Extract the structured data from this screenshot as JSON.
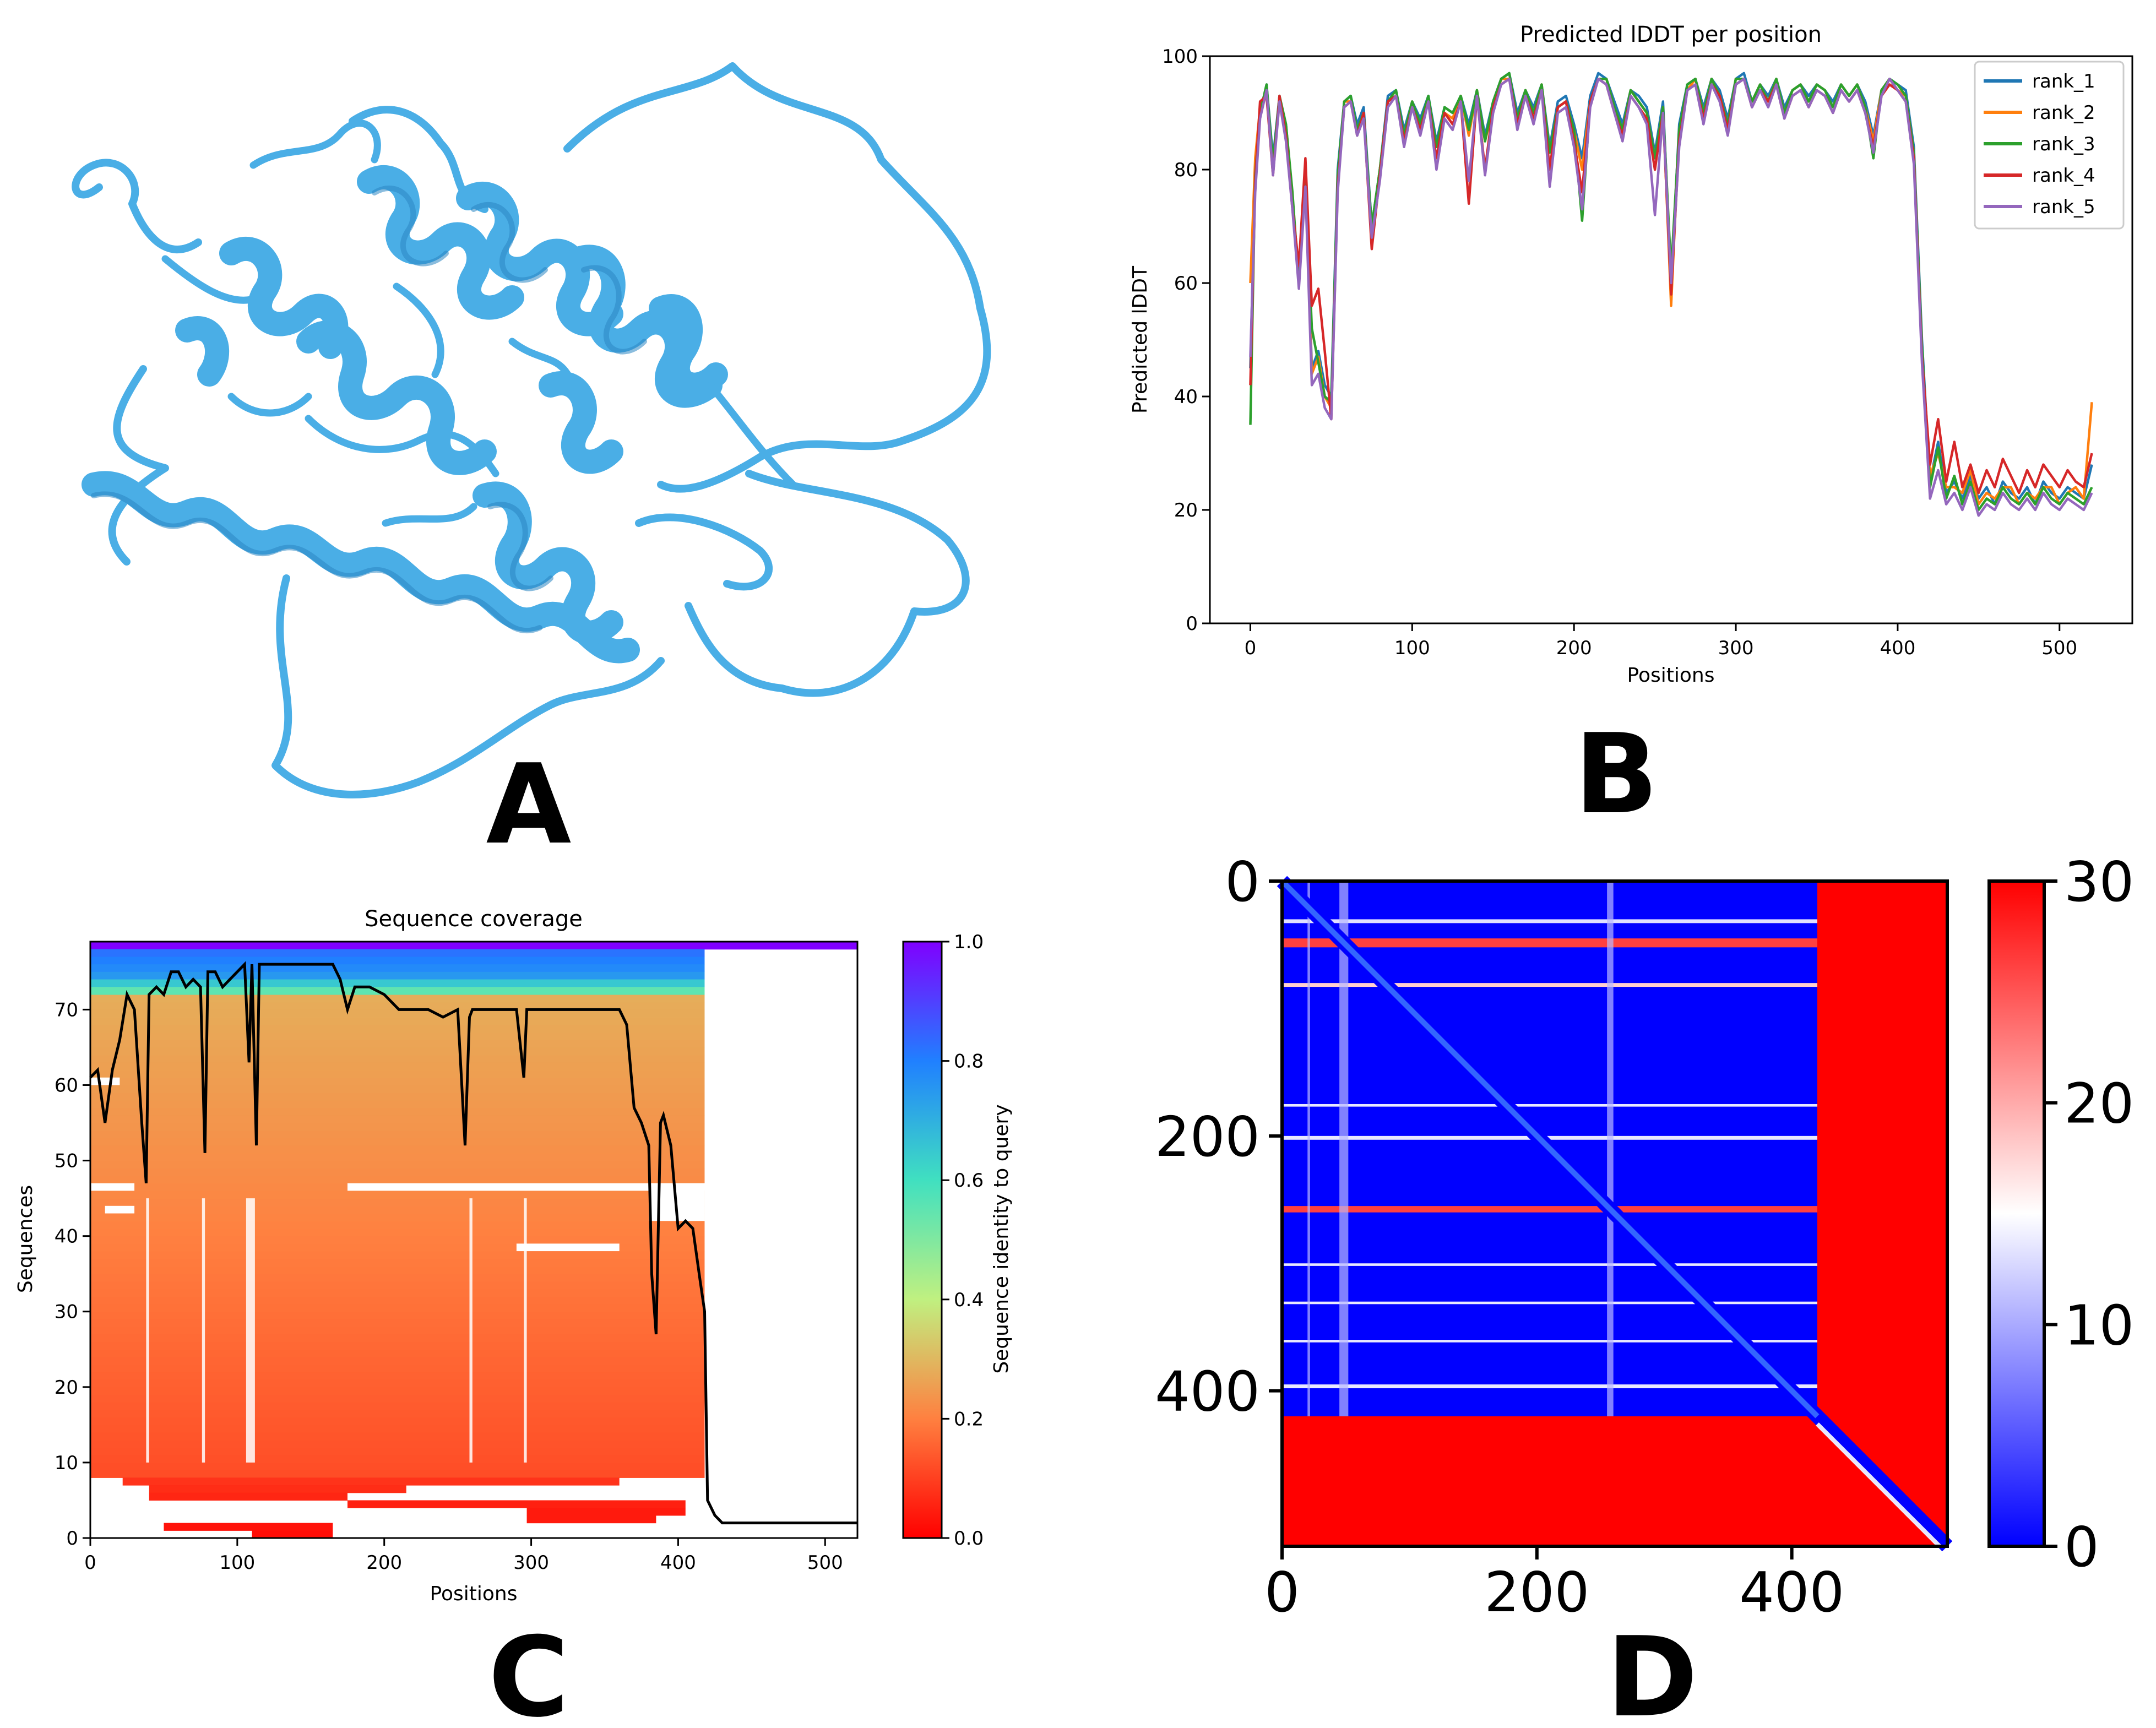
{
  "panel_labels": [
    "A",
    "B",
    "C",
    "D"
  ],
  "structure": {
    "description_color": "#4aaee6",
    "shade_color": "#2b86c2"
  },
  "chart_data": [
    {
      "panel": "B",
      "type": "line",
      "title": "Predicted lDDT per position",
      "xlabel": "Positions",
      "ylabel": "Predicted lDDT",
      "xlim": [
        -25,
        545
      ],
      "ylim": [
        0,
        100
      ],
      "xticks": [
        0,
        100,
        200,
        300,
        400,
        500
      ],
      "yticks": [
        0,
        20,
        40,
        60,
        80,
        100
      ],
      "legend_position": "top-right",
      "grid": false,
      "x": [
        0,
        3,
        6,
        10,
        14,
        18,
        22,
        26,
        30,
        34,
        38,
        42,
        46,
        50,
        54,
        58,
        62,
        66,
        70,
        75,
        80,
        85,
        90,
        95,
        100,
        105,
        110,
        115,
        120,
        125,
        130,
        135,
        140,
        145,
        150,
        155,
        160,
        165,
        170,
        175,
        180,
        185,
        190,
        195,
        200,
        205,
        210,
        215,
        220,
        225,
        230,
        235,
        240,
        245,
        250,
        255,
        260,
        265,
        270,
        275,
        280,
        285,
        290,
        295,
        300,
        305,
        310,
        315,
        320,
        325,
        330,
        335,
        340,
        345,
        350,
        355,
        360,
        365,
        370,
        375,
        380,
        385,
        390,
        395,
        400,
        405,
        410,
        415,
        420,
        425,
        430,
        435,
        440,
        445,
        450,
        455,
        460,
        465,
        470,
        475,
        480,
        485,
        490,
        495,
        500,
        505,
        510,
        515,
        520
      ],
      "series": [
        {
          "name": "rank_1",
          "color": "#1f77b4",
          "values": [
            45,
            80,
            90,
            95,
            82,
            93,
            88,
            75,
            60,
            80,
            45,
            48,
            42,
            40,
            80,
            92,
            93,
            88,
            91,
            70,
            80,
            93,
            94,
            87,
            92,
            89,
            93,
            85,
            91,
            90,
            93,
            88,
            94,
            86,
            92,
            96,
            97,
            90,
            94,
            91,
            95,
            84,
            92,
            93,
            88,
            82,
            93,
            97,
            96,
            92,
            88,
            94,
            93,
            91,
            83,
            92,
            60,
            88,
            95,
            96,
            91,
            96,
            94,
            89,
            96,
            97,
            92,
            95,
            93,
            96,
            91,
            94,
            95,
            93,
            95,
            94,
            92,
            95,
            93,
            95,
            92,
            86,
            94,
            96,
            95,
            94,
            84,
            50,
            25,
            32,
            23,
            25,
            22,
            26,
            22,
            24,
            21,
            25,
            23,
            22,
            24,
            21,
            25,
            23,
            22,
            24,
            23,
            22,
            28
          ]
        },
        {
          "name": "rank_2",
          "color": "#ff7f0e",
          "values": [
            60,
            82,
            91,
            94,
            80,
            92,
            87,
            74,
            62,
            78,
            44,
            47,
            40,
            38,
            78,
            92,
            92,
            87,
            90,
            69,
            80,
            92,
            93,
            86,
            92,
            88,
            92,
            84,
            90,
            89,
            93,
            86,
            94,
            85,
            91,
            96,
            96,
            89,
            94,
            90,
            95,
            83,
            91,
            92,
            87,
            80,
            92,
            96,
            96,
            91,
            87,
            94,
            92,
            90,
            82,
            91,
            56,
            87,
            94,
            96,
            90,
            96,
            93,
            88,
            96,
            96,
            92,
            95,
            92,
            96,
            90,
            94,
            95,
            92,
            95,
            94,
            91,
            95,
            93,
            95,
            91,
            85,
            94,
            96,
            94,
            93,
            83,
            48,
            26,
            30,
            24,
            24,
            23,
            27,
            21,
            23,
            22,
            24,
            24,
            21,
            23,
            22,
            24,
            24,
            21,
            23,
            24,
            22,
            39
          ]
        },
        {
          "name": "rank_3",
          "color": "#2ca02c",
          "values": [
            35,
            79,
            90,
            95,
            81,
            93,
            88,
            76,
            60,
            79,
            52,
            46,
            40,
            39,
            79,
            92,
            93,
            87,
            90,
            70,
            80,
            92,
            94,
            86,
            92,
            88,
            93,
            84,
            91,
            90,
            93,
            87,
            94,
            85,
            92,
            96,
            97,
            89,
            94,
            90,
            95,
            83,
            91,
            92,
            87,
            71,
            92,
            96,
            96,
            91,
            87,
            94,
            92,
            90,
            82,
            91,
            62,
            87,
            95,
            96,
            90,
            96,
            93,
            88,
            96,
            96,
            92,
            95,
            92,
            96,
            90,
            94,
            95,
            92,
            95,
            94,
            91,
            95,
            93,
            95,
            91,
            82,
            94,
            96,
            95,
            93,
            83,
            49,
            24,
            31,
            22,
            26,
            21,
            25,
            20,
            22,
            21,
            24,
            22,
            21,
            23,
            21,
            24,
            22,
            21,
            23,
            22,
            21,
            24
          ]
        },
        {
          "name": "rank_4",
          "color": "#d62728",
          "values": [
            42,
            78,
            92,
            93,
            79,
            93,
            86,
            73,
            63,
            82,
            56,
            59,
            48,
            36,
            77,
            91,
            92,
            86,
            90,
            66,
            79,
            92,
            93,
            85,
            91,
            87,
            92,
            82,
            90,
            88,
            92,
            74,
            93,
            80,
            91,
            95,
            96,
            88,
            93,
            89,
            94,
            80,
            91,
            92,
            85,
            76,
            92,
            96,
            95,
            90,
            86,
            93,
            91,
            89,
            80,
            90,
            58,
            85,
            94,
            95,
            89,
            95,
            93,
            87,
            95,
            96,
            91,
            94,
            92,
            95,
            89,
            93,
            94,
            91,
            94,
            93,
            90,
            94,
            92,
            94,
            90,
            84,
            93,
            95,
            94,
            92,
            82,
            47,
            28,
            36,
            25,
            32,
            24,
            28,
            23,
            27,
            24,
            29,
            26,
            23,
            27,
            24,
            28,
            26,
            24,
            27,
            25,
            24,
            30
          ]
        },
        {
          "name": "rank_5",
          "color": "#9467bd",
          "values": [
            47,
            76,
            89,
            94,
            79,
            92,
            85,
            73,
            59,
            77,
            42,
            44,
            38,
            36,
            76,
            91,
            92,
            86,
            89,
            68,
            78,
            91,
            93,
            84,
            91,
            86,
            92,
            80,
            89,
            87,
            92,
            78,
            93,
            79,
            90,
            95,
            96,
            87,
            93,
            88,
            94,
            77,
            90,
            91,
            84,
            73,
            91,
            96,
            95,
            90,
            85,
            93,
            91,
            88,
            72,
            90,
            60,
            84,
            94,
            95,
            88,
            95,
            92,
            86,
            95,
            96,
            91,
            94,
            91,
            95,
            89,
            93,
            94,
            91,
            94,
            93,
            90,
            94,
            92,
            94,
            90,
            83,
            93,
            96,
            94,
            92,
            81,
            46,
            22,
            27,
            21,
            23,
            20,
            24,
            19,
            21,
            20,
            23,
            21,
            20,
            22,
            20,
            23,
            21,
            20,
            22,
            21,
            20,
            23
          ]
        }
      ]
    },
    {
      "panel": "C",
      "type": "heatmap",
      "title": "Sequence coverage",
      "xlabel": "Positions",
      "ylabel": "Sequences",
      "colorbar_label": "Sequence identity to query",
      "xlim": [
        0,
        522
      ],
      "ylim": [
        0,
        79
      ],
      "xticks": [
        0,
        100,
        200,
        300,
        400,
        500
      ],
      "yticks": [
        0,
        10,
        20,
        30,
        40,
        50,
        60,
        70
      ],
      "colorbar_ticks": [
        "0.0",
        "0.2",
        "0.4",
        "0.6",
        "0.8",
        "1.0"
      ],
      "colormap": "rainbow_r",
      "rows": [
        {
          "row": 78,
          "start": 0,
          "end": 522,
          "identity": 1.0
        },
        {
          "row": 77,
          "start": 0,
          "end": 418,
          "identity": 0.82
        },
        {
          "row": 76,
          "start": 0,
          "end": 418,
          "identity": 0.8
        },
        {
          "row": 75,
          "start": 0,
          "end": 418,
          "identity": 0.78
        },
        {
          "row": 74,
          "start": 0,
          "end": 418,
          "identity": 0.75
        },
        {
          "row": 73,
          "start": 0,
          "end": 418,
          "identity": 0.65
        },
        {
          "row": 72,
          "start": 0,
          "end": 418,
          "identity": 0.55
        }
      ],
      "bulk_rows": {
        "from": 8,
        "to": 71,
        "identity_top": 0.28,
        "identity_bottom": 0.12,
        "typical_end": 418
      },
      "short_rows": [
        {
          "row": 7,
          "start": 22,
          "end": 360,
          "identity": 0.08
        },
        {
          "row": 6,
          "start": 40,
          "end": 215,
          "identity": 0.07
        },
        {
          "row": 5,
          "start": 40,
          "end": 175,
          "identity": 0.06
        },
        {
          "row": 4,
          "start": 175,
          "end": 405,
          "identity": 0.05
        },
        {
          "row": 3,
          "start": 297,
          "end": 405,
          "identity": 0.04
        },
        {
          "row": 2,
          "start": 297,
          "end": 385,
          "identity": 0.04
        },
        {
          "row": 1,
          "start": 50,
          "end": 165,
          "identity": 0.03
        },
        {
          "row": 0,
          "start": 110,
          "end": 165,
          "identity": 0.02
        }
      ],
      "coverage_line": {
        "x": [
          0,
          5,
          10,
          15,
          20,
          25,
          30,
          35,
          38,
          40,
          45,
          50,
          55,
          60,
          65,
          70,
          75,
          78,
          80,
          85,
          90,
          95,
          100,
          105,
          108,
          110,
          113,
          115,
          120,
          130,
          150,
          165,
          170,
          175,
          180,
          190,
          200,
          210,
          215,
          220,
          230,
          240,
          250,
          255,
          258,
          260,
          265,
          270,
          280,
          290,
          295,
          297,
          300,
          310,
          320,
          330,
          340,
          350,
          355,
          360,
          365,
          370,
          375,
          380,
          382,
          385,
          388,
          390,
          395,
          400,
          405,
          410,
          415,
          418,
          420,
          425,
          430,
          440,
          460,
          480,
          500,
          522
        ],
        "y": [
          61,
          62,
          55,
          62,
          66,
          72,
          70,
          55,
          47,
          72,
          73,
          72,
          75,
          75,
          73,
          74,
          73,
          51,
          75,
          75,
          73,
          74,
          75,
          76,
          63,
          76,
          52,
          76,
          76,
          76,
          76,
          76,
          74,
          70,
          73,
          73,
          72,
          70,
          70,
          70,
          70,
          69,
          70,
          52,
          69,
          70,
          70,
          70,
          70,
          70,
          61,
          70,
          70,
          70,
          70,
          70,
          70,
          70,
          70,
          70,
          68,
          57,
          55,
          52,
          35,
          27,
          55,
          56,
          52,
          41,
          42,
          41,
          34,
          30,
          5,
          3,
          2,
          2,
          2,
          2,
          2,
          2
        ]
      }
    },
    {
      "panel": "D",
      "type": "heatmap",
      "title": "",
      "xticks": [
        0,
        200,
        400
      ],
      "yticks": [
        0,
        200,
        400
      ],
      "colorbar_ticks": [
        0,
        10,
        20,
        30
      ],
      "colormap": "bwr",
      "extent": [
        0,
        522
      ],
      "ordered_region_end": 420,
      "colors": {
        "low": "#0000ff",
        "mid": "#ffffff",
        "high": "#ff0000"
      }
    }
  ]
}
